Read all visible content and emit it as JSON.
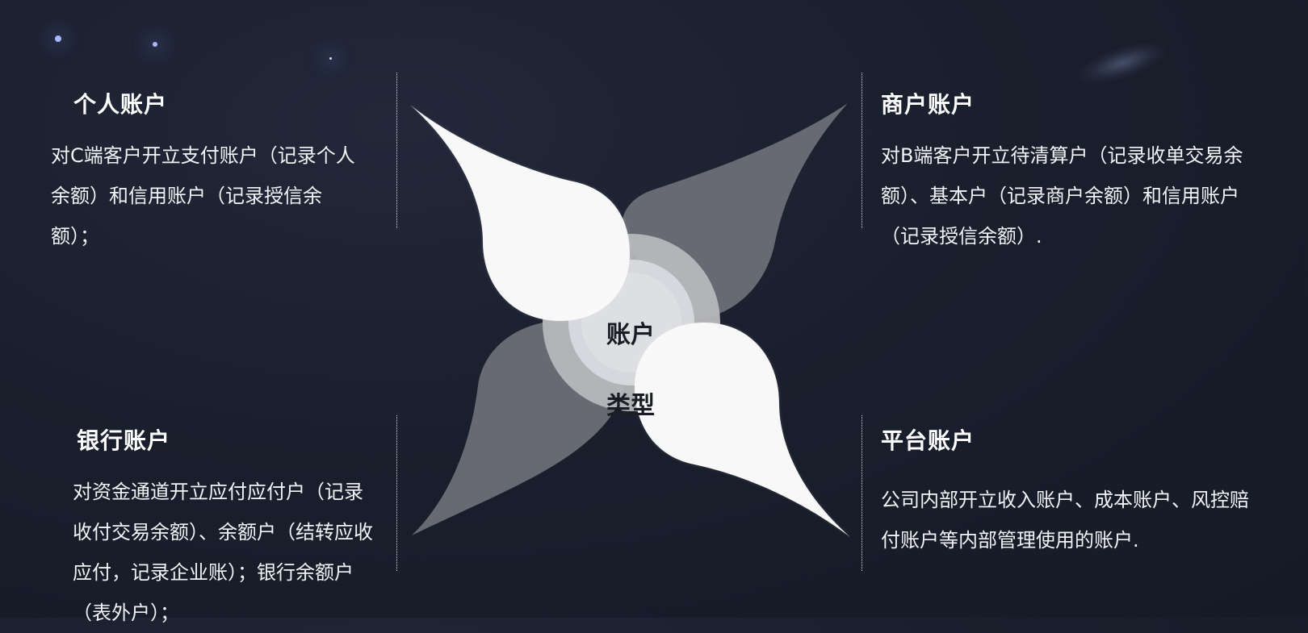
{
  "center": {
    "label_line1": "账户",
    "label_line2": "类型"
  },
  "panels": {
    "personal": {
      "title": "个人账户",
      "text": "对C端客户开立支付账户（记录个人余额）和信用账户（记录授信余额）；"
    },
    "merchant": {
      "title": "商户账户",
      "text": "对B端客户开立待清算户（记录收单交易余额）、基本户（记录商户余额）和信用账户（记录授信余额）."
    },
    "bank": {
      "title": "银行账户",
      "text": "对资金通道开立应付应付户（记录收付交易余额）、余额户（结转应收应付，记录企业账）；银行余额户（表外户）；"
    },
    "platform": {
      "title": "平台账户",
      "text": "公司内部开立收入账户、成本账户、风控赔付账户等内部管理使用的账户."
    }
  },
  "colors": {
    "background": "#1a1f2d",
    "petal_light": "#f8f8f8",
    "petal_dark": "#6c6f77",
    "ring_outer": "#b7b8bc",
    "ring_inner": "#d9dade",
    "center_text": "#1a1d24"
  }
}
